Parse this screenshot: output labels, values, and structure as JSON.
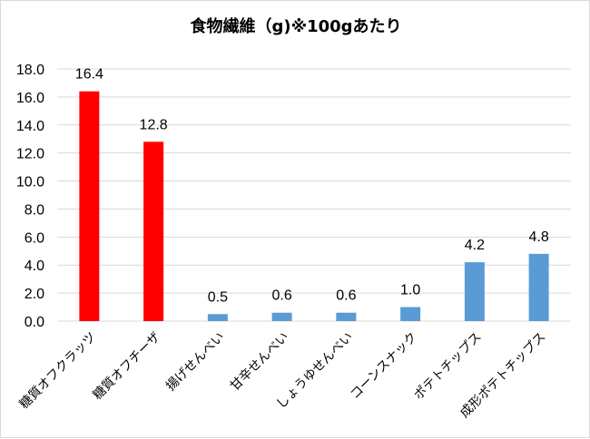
{
  "chart_data": {
    "type": "bar",
    "title": "食物繊維（g)※100gあたり",
    "xlabel": "",
    "ylabel": "",
    "ylim": [
      0,
      18
    ],
    "yticks": [
      "0.0",
      "2.0",
      "4.0",
      "6.0",
      "8.0",
      "10.0",
      "12.0",
      "14.0",
      "16.0",
      "18.0"
    ],
    "grid": true,
    "categories": [
      "糖質オフクラッツ",
      "糖質オフチーザ",
      "揚げせんべい",
      "甘辛せんべい",
      "しょうゆせんべい",
      "コーンスナック",
      "ポテトチップス",
      "成形ポテトチップス"
    ],
    "values": [
      16.4,
      12.8,
      0.5,
      0.6,
      0.6,
      1.0,
      4.2,
      4.8
    ],
    "data_labels": [
      "16.4",
      "12.8",
      "0.5",
      "0.6",
      "0.6",
      "1.0",
      "4.2",
      "4.8"
    ],
    "bar_colors": [
      "#ff0000",
      "#ff0000",
      "#5b9bd5",
      "#5b9bd5",
      "#5b9bd5",
      "#5b9bd5",
      "#5b9bd5",
      "#5b9bd5"
    ],
    "gridline_color": "#d9d9d9"
  }
}
